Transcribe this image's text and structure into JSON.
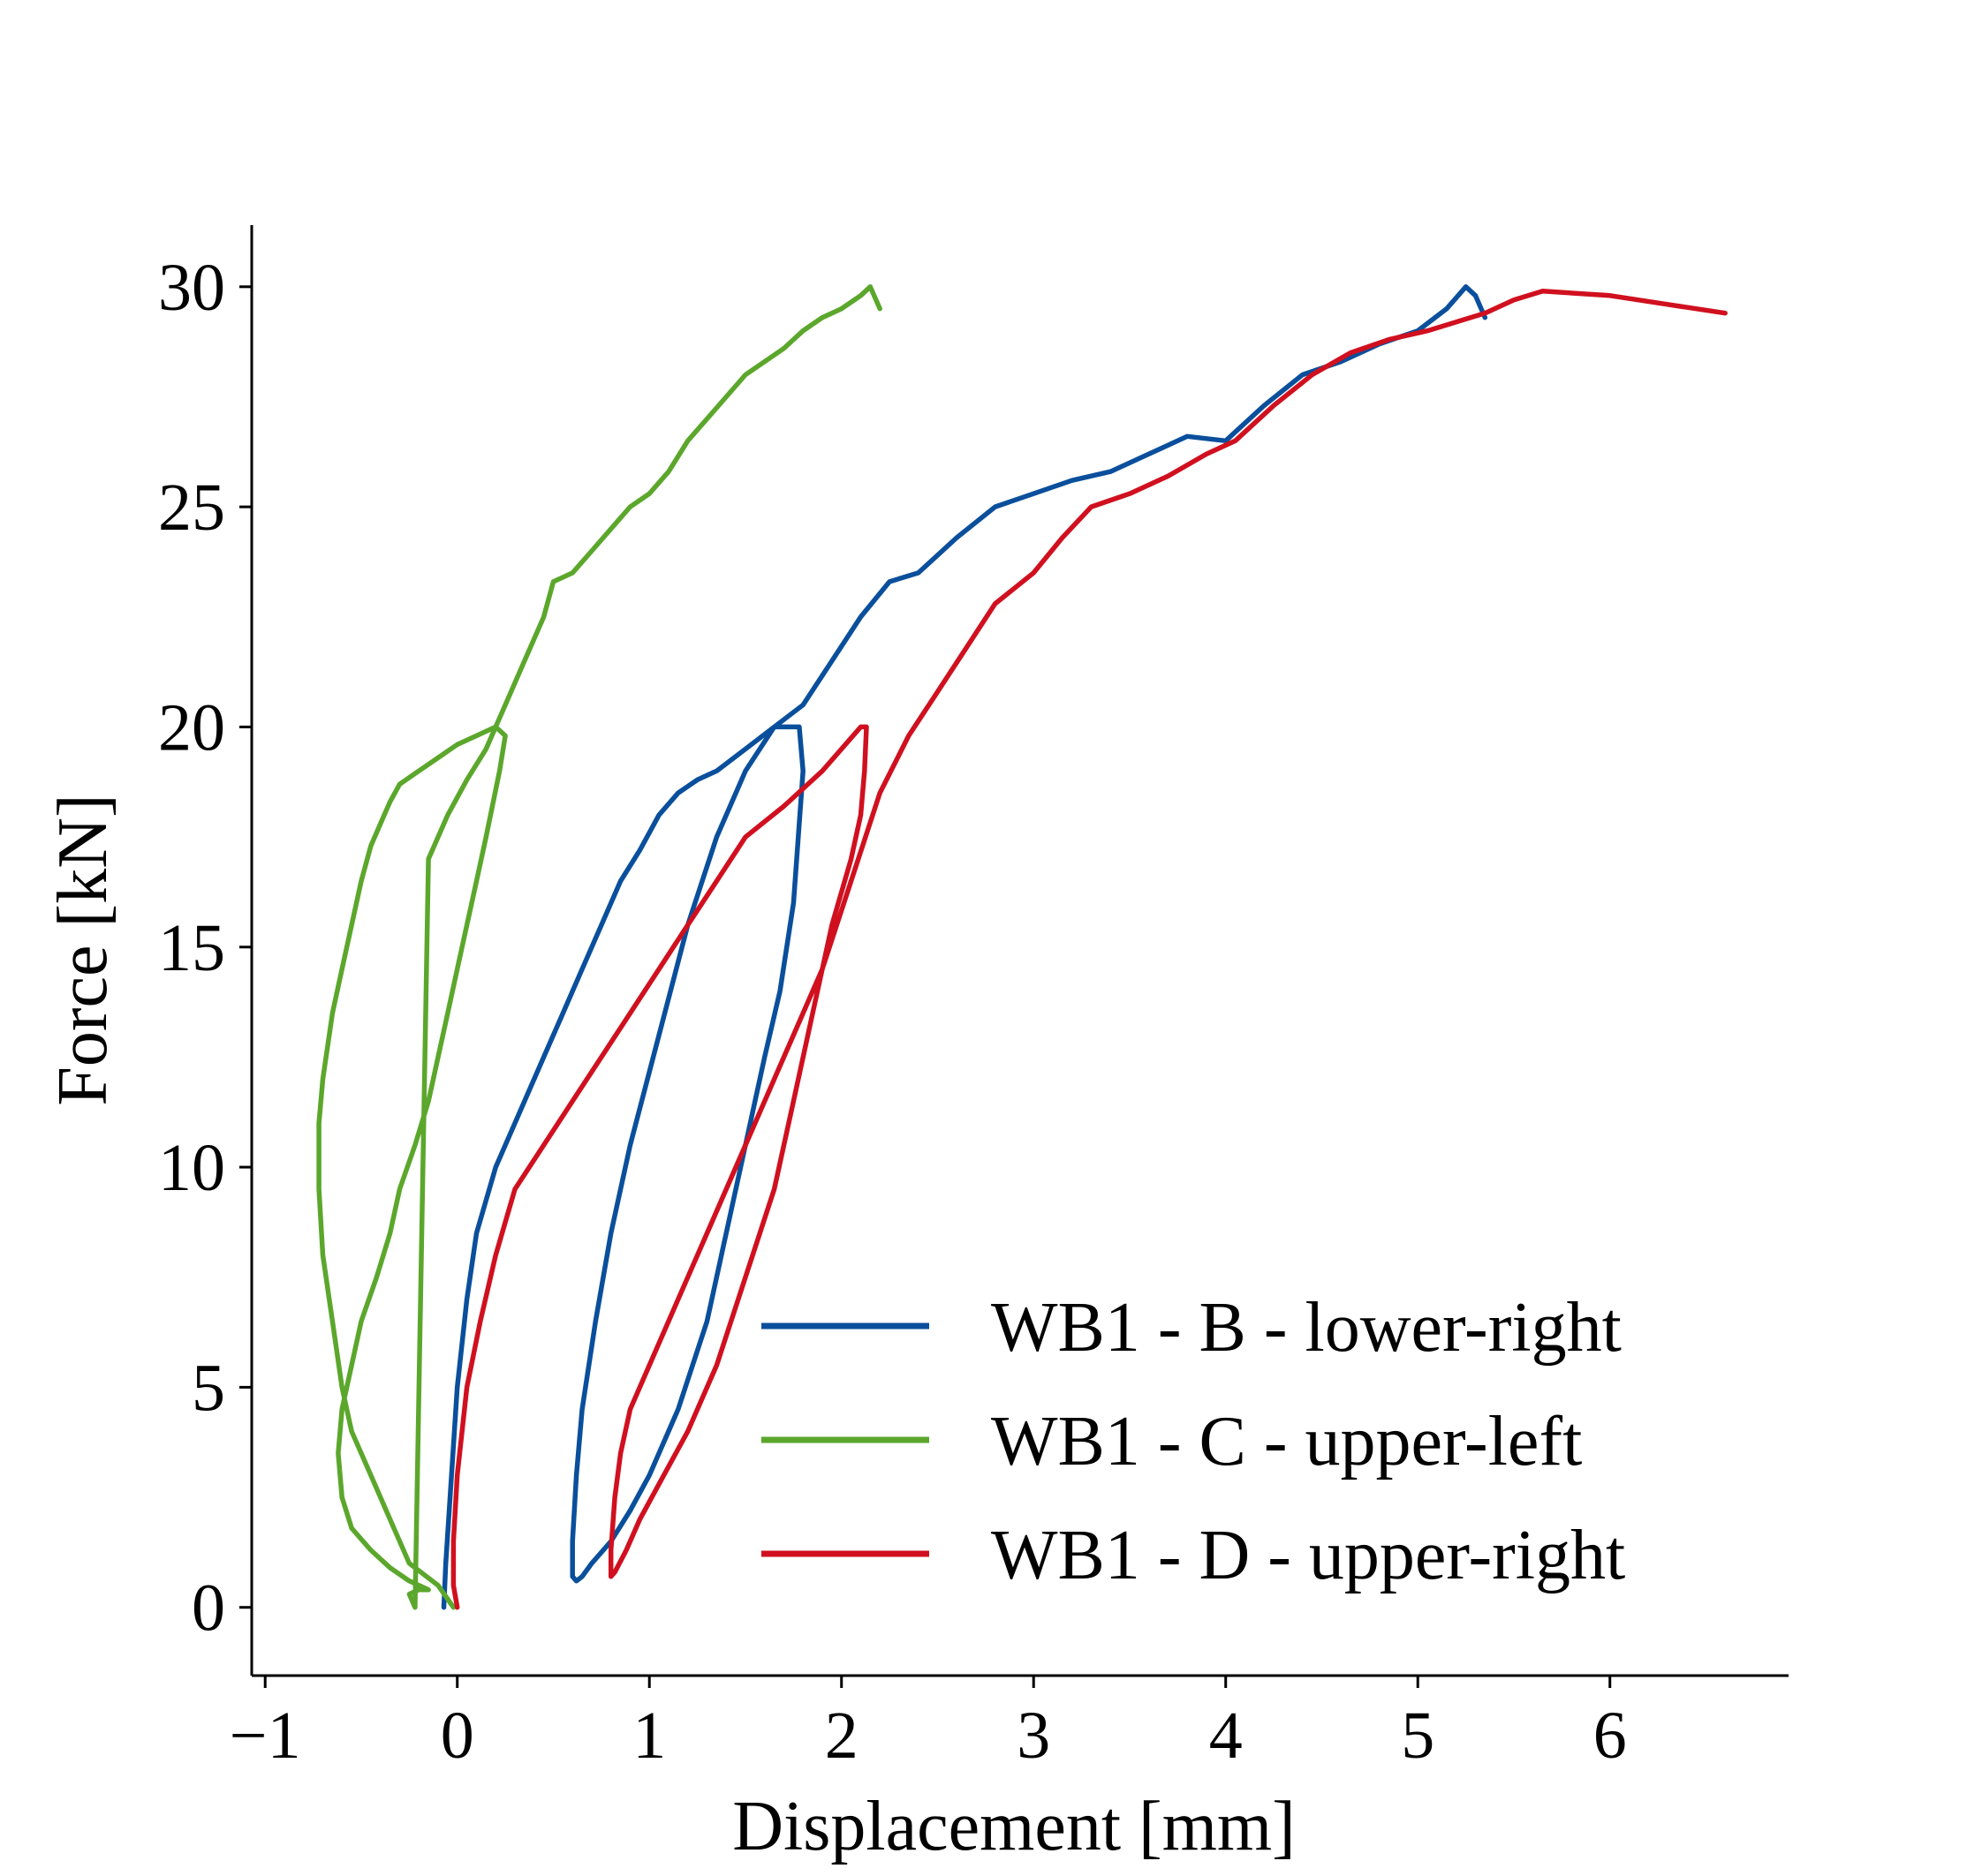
{
  "chart_data": {
    "type": "line",
    "title": "",
    "xlabel": "Displacement [mm]",
    "ylabel": "Force [kN]",
    "xlim": [
      -1.07,
      6.93
    ],
    "ylim": [
      -1.55,
      31.4
    ],
    "xticks": [
      -1,
      0,
      1,
      2,
      3,
      4,
      5,
      6
    ],
    "xtick_labels": [
      "−1",
      "0",
      "1",
      "2",
      "3",
      "4",
      "5",
      "6"
    ],
    "yticks": [
      0,
      5,
      10,
      15,
      20,
      25,
      30
    ],
    "ytick_labels": [
      "0",
      "5",
      "10",
      "15",
      "20",
      "25",
      "30"
    ],
    "grid": false,
    "legend_position": "lower-right",
    "series": [
      {
        "name": "WB1 - B - lower-right",
        "color": "#0a4f9c",
        "x": [
          -0.07,
          -0.06,
          -0.03,
          0.0,
          0.05,
          0.1,
          0.2,
          0.3,
          0.45,
          0.55,
          0.65,
          0.75,
          0.85,
          0.95,
          1.05,
          1.15,
          1.25,
          1.35,
          1.5,
          1.65,
          1.78,
          1.8,
          1.75,
          1.68,
          1.6,
          1.5,
          1.4,
          1.3,
          1.15,
          1.0,
          0.9,
          0.8,
          0.7,
          0.65,
          0.62,
          0.6,
          0.6,
          0.62,
          0.65,
          0.72,
          0.8,
          0.9,
          1.05,
          1.2,
          1.35,
          1.5,
          1.65,
          1.8,
          1.95,
          2.1,
          2.25,
          2.4,
          2.6,
          2.8,
          3.0,
          3.2,
          3.4,
          3.6,
          3.8,
          4.0,
          4.2,
          4.4,
          4.6,
          4.8,
          5.0,
          5.15,
          5.25,
          5.3,
          5.35
        ],
        "y": [
          0.0,
          1.0,
          3.0,
          5.0,
          7.0,
          8.5,
          10.0,
          11.0,
          12.5,
          13.5,
          14.5,
          15.5,
          16.5,
          17.2,
          18.0,
          18.5,
          18.8,
          19.0,
          19.5,
          20.0,
          20.0,
          19.0,
          16.0,
          14.0,
          12.5,
          10.5,
          8.5,
          6.5,
          4.5,
          3.0,
          2.2,
          1.5,
          1.0,
          0.7,
          0.6,
          0.7,
          1.5,
          3.0,
          4.5,
          6.5,
          8.5,
          10.5,
          13.0,
          15.5,
          17.5,
          19.0,
          20.0,
          20.5,
          21.5,
          22.5,
          23.3,
          23.5,
          24.3,
          25.0,
          25.3,
          25.6,
          25.8,
          26.2,
          26.6,
          26.5,
          27.3,
          28.0,
          28.3,
          28.7,
          29.0,
          29.5,
          30.0,
          29.8,
          29.3
        ]
      },
      {
        "name": "WB1 - C - upper-left",
        "color": "#5ba72c",
        "x": [
          -0.02,
          -0.1,
          -0.25,
          -0.35,
          -0.45,
          -0.55,
          -0.6,
          -0.65,
          -0.7,
          -0.72,
          -0.72,
          -0.7,
          -0.65,
          -0.6,
          -0.55,
          -0.5,
          -0.45,
          -0.4,
          -0.35,
          -0.3,
          -0.2,
          -0.1,
          0.0,
          0.1,
          0.2,
          0.25,
          0.22,
          0.15,
          0.1,
          0.05,
          0.0,
          -0.05,
          -0.1,
          -0.15,
          -0.22,
          -0.3,
          -0.35,
          -0.42,
          -0.5,
          -0.55,
          -0.6,
          -0.62,
          -0.6,
          -0.55,
          -0.45,
          -0.35,
          -0.25,
          -0.15,
          -0.2,
          -0.25,
          -0.22,
          -0.15,
          -0.05,
          0.05,
          0.15,
          0.25,
          0.35,
          0.45,
          0.5,
          0.6,
          0.7,
          0.8,
          0.9,
          1.0,
          1.1,
          1.2,
          1.3,
          1.4,
          1.5,
          1.6,
          1.7,
          1.8,
          1.9,
          2.0,
          2.1,
          2.15,
          2.2
        ],
        "y": [
          0.0,
          0.5,
          1.0,
          2.0,
          3.0,
          4.0,
          5.0,
          6.5,
          8.0,
          9.5,
          11.0,
          12.0,
          13.5,
          14.5,
          15.5,
          16.5,
          17.3,
          17.8,
          18.3,
          18.7,
          19.0,
          19.3,
          19.6,
          19.8,
          20.0,
          19.8,
          19.0,
          17.5,
          16.5,
          15.5,
          14.5,
          13.5,
          12.5,
          11.5,
          10.5,
          9.5,
          8.5,
          7.5,
          6.5,
          5.5,
          4.5,
          3.5,
          2.5,
          1.8,
          1.3,
          0.9,
          0.6,
          0.4,
          0.4,
          0.3,
          0.0,
          17.0,
          18.0,
          18.8,
          19.5,
          20.5,
          21.5,
          22.5,
          23.3,
          23.5,
          24.0,
          24.5,
          25.0,
          25.3,
          25.8,
          26.5,
          27.0,
          27.5,
          28.0,
          28.3,
          28.6,
          29.0,
          29.3,
          29.5,
          29.8,
          30.0,
          29.5
        ]
      },
      {
        "name": "WB1 - D - upper-right",
        "color": "#d0101f",
        "x": [
          0.0,
          -0.02,
          -0.02,
          0.0,
          0.05,
          0.12,
          0.2,
          0.3,
          0.45,
          0.6,
          0.75,
          0.9,
          1.05,
          1.2,
          1.35,
          1.5,
          1.7,
          1.9,
          2.0,
          2.1,
          2.13,
          2.12,
          2.1,
          2.05,
          1.95,
          1.85,
          1.75,
          1.65,
          1.5,
          1.35,
          1.2,
          1.05,
          0.95,
          0.88,
          0.82,
          0.8,
          0.8,
          0.82,
          0.85,
          0.9,
          1.0,
          1.15,
          1.3,
          1.5,
          1.7,
          1.9,
          2.05,
          2.2,
          2.35,
          2.5,
          2.65,
          2.8,
          3.0,
          3.15,
          3.3,
          3.5,
          3.7,
          3.9,
          4.05,
          4.25,
          4.45,
          4.65,
          4.85,
          5.05,
          5.2,
          5.35,
          5.5,
          5.65,
          6.0,
          6.3,
          6.6
        ],
        "y": [
          0.0,
          0.5,
          1.5,
          3.0,
          5.0,
          6.5,
          8.0,
          9.5,
          10.5,
          11.5,
          12.5,
          13.5,
          14.5,
          15.5,
          16.5,
          17.5,
          18.2,
          19.0,
          19.5,
          20.0,
          20.0,
          19.0,
          18.0,
          17.0,
          15.5,
          13.5,
          11.5,
          9.5,
          7.5,
          5.5,
          4.0,
          2.8,
          2.0,
          1.3,
          0.8,
          0.7,
          1.3,
          2.5,
          3.5,
          4.5,
          5.5,
          7.0,
          8.5,
          10.5,
          12.5,
          14.5,
          16.5,
          18.5,
          19.8,
          20.8,
          21.8,
          22.8,
          23.5,
          24.3,
          25.0,
          25.3,
          25.7,
          26.2,
          26.5,
          27.3,
          28.0,
          28.5,
          28.8,
          29.0,
          29.2,
          29.4,
          29.7,
          29.9,
          29.8,
          29.6,
          29.4
        ]
      }
    ]
  }
}
